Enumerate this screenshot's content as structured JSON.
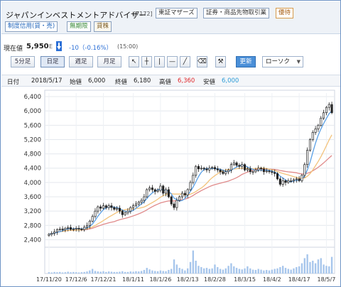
{
  "header": {
    "company_name": "ジャパンインベストメントアドバイザー",
    "code": "[7172]",
    "market_tag": "東証マザーズ",
    "sector_tag": "証券・商品先物取引業",
    "preferential_tag": "優待",
    "margin_tag": "制度信用(貸・売)",
    "no_limit_tag": "無期限",
    "lending_tag": "貸株"
  },
  "price": {
    "label": "現在値",
    "value": "5,950",
    "suffix": "E",
    "change": "-10（-0.16%）",
    "time": "(15:00)"
  },
  "toolbar": {
    "periods": [
      "5分足",
      "日足",
      "週足",
      "月足"
    ],
    "active_period": "日足",
    "refresh_label": "更新",
    "candle_label": "ローソク"
  },
  "info": {
    "date_label": "日付",
    "date_value": "2018/5/17",
    "open_label": "始値",
    "open_value": "6,000",
    "close_label": "終値",
    "close_value": "6,180",
    "high_label": "高値",
    "high_value": "6,360",
    "low_label": "安値",
    "low_value": "6,000"
  },
  "colors": {
    "ma_short": "#5aa0e6",
    "ma_mid": "#f3c27a",
    "ma_long": "#e08a8a",
    "volume": "#a7c6ec",
    "high": "#e0282c",
    "low": "#2b9bd6",
    "down_arrow": "#2b6fd6"
  },
  "chart_data": {
    "type": "candlestick",
    "y_ticks": [
      2400,
      2800,
      3200,
      3600,
      4000,
      4400,
      4800,
      5200,
      5600,
      6000,
      6400
    ],
    "y_tick_labels": [
      "2,400",
      "2,800",
      "3,200",
      "3,600",
      "4,000",
      "4,400",
      "4,800",
      "5,200",
      "5,600",
      "6,000",
      "6,400"
    ],
    "ylim": [
      2250,
      6500
    ],
    "x_ticks": [
      "17/11/20",
      "17/12/6",
      "17/12/21",
      "18/1/11",
      "18/1/26",
      "18/2/13",
      "18/2/28",
      "18/3/15",
      "18/4/2",
      "18/4/17",
      "18/5/7"
    ],
    "closes": [
      2550,
      2580,
      2620,
      2680,
      2700,
      2680,
      2720,
      2740,
      2690,
      2700,
      2720,
      2700,
      2680,
      2750,
      2800,
      2920,
      3050,
      3200,
      3320,
      3280,
      3350,
      3300,
      3350,
      3300,
      3250,
      3280,
      3200,
      3100,
      3150,
      3200,
      3300,
      3350,
      3400,
      3450,
      3500,
      3600,
      3800,
      3850,
      3800,
      3750,
      3780,
      3900,
      3700,
      3800,
      3600,
      3400,
      3300,
      3500,
      3600,
      3700,
      3650,
      3800,
      4000,
      4200,
      4450,
      4380,
      4400,
      4380,
      4350,
      4400,
      4420,
      4380,
      4350,
      4300,
      4250,
      4300,
      4350,
      4500,
      4550,
      4480,
      4450,
      4500,
      4350,
      4380,
      4300,
      4300,
      4350,
      4400,
      4380,
      4300,
      4320,
      4300,
      4280,
      4250,
      4100,
      3950,
      4050,
      4000,
      4050,
      4050,
      4080,
      4100,
      4050,
      4200,
      4500,
      4900,
      5200,
      5400,
      5500,
      5600,
      5800,
      5950,
      6100,
      6180,
      5950
    ],
    "volumes_rel": [
      0.05,
      0.04,
      0.06,
      0.05,
      0.06,
      0.04,
      0.05,
      0.07,
      0.05,
      0.06,
      0.05,
      0.04,
      0.05,
      0.06,
      0.08,
      0.12,
      0.18,
      0.1,
      0.08,
      0.07,
      0.09,
      0.06,
      0.08,
      0.07,
      0.06,
      0.06,
      0.07,
      0.09,
      0.06,
      0.06,
      0.08,
      0.07,
      0.09,
      0.08,
      0.1,
      0.14,
      0.22,
      0.16,
      0.12,
      0.1,
      0.09,
      0.12,
      0.1,
      0.09,
      0.14,
      0.18,
      0.55,
      0.35,
      0.22,
      0.18,
      0.12,
      0.2,
      0.45,
      0.9,
      0.5,
      0.3,
      0.25,
      0.2,
      0.22,
      0.18,
      0.2,
      0.35,
      0.25,
      0.18,
      0.15,
      0.2,
      0.3,
      0.4,
      0.28,
      0.22,
      0.18,
      0.16,
      0.2,
      0.28,
      0.2,
      0.15,
      0.14,
      0.18,
      0.15,
      0.12,
      0.14,
      0.12,
      0.15,
      0.18,
      0.2,
      0.25,
      0.3,
      0.22,
      0.18,
      0.15,
      0.2,
      0.25,
      0.28,
      0.4,
      0.6,
      0.75,
      0.45,
      0.5,
      0.4,
      0.55,
      0.6,
      0.35,
      0.3,
      0.28,
      0.65
    ]
  }
}
